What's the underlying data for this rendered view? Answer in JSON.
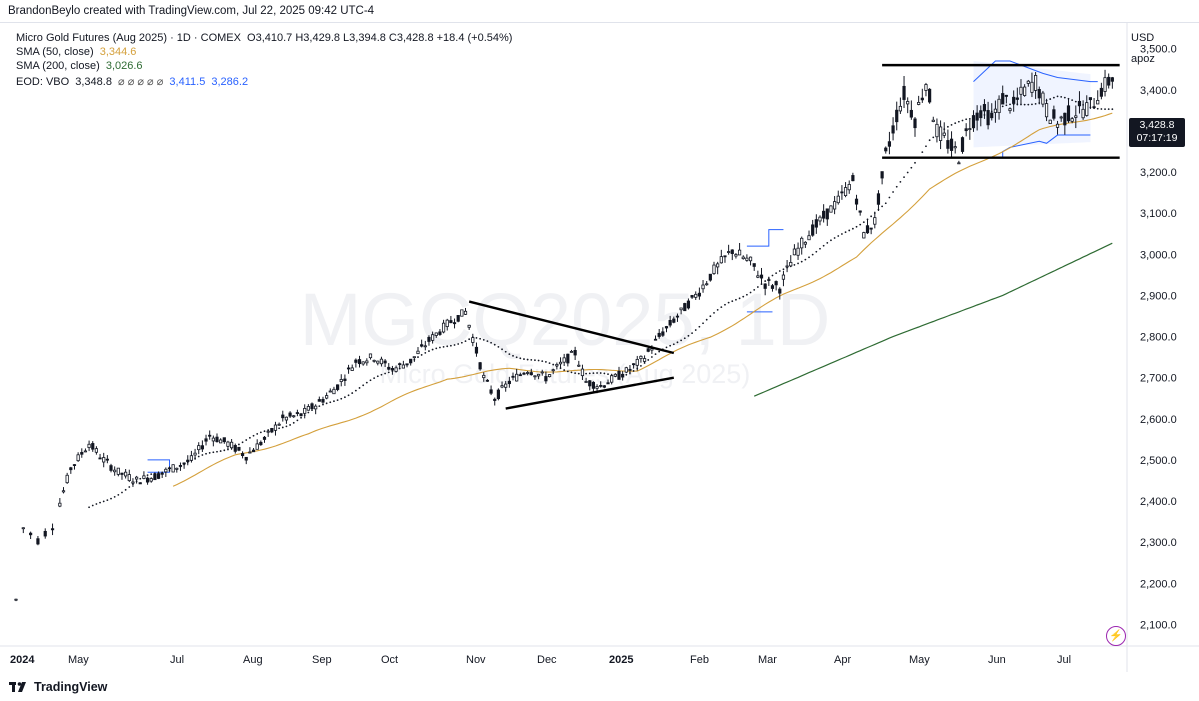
{
  "header": {
    "creator": "BrandonBeylo created with TradingView.com, Jul 22, 2025 09:42 UTC-4"
  },
  "legend": {
    "symbol": "Micro Gold Futures (Aug 2025) · 1D · COMEX",
    "ohlc": "O3,410.7 H3,429.8 L3,394.8 C3,428.8 +18.4 (+0.54%)",
    "sma50_label": "SMA (50, close)",
    "sma50_value": "3,344.6",
    "sma200_label": "SMA (200, close)",
    "sma200_value": "3,026.6",
    "eod_label": "EOD: VBO",
    "eod_value": "3,348.8",
    "eod_symbols": "⌀ ⌀ ⌀ ⌀ ⌀",
    "eod_upper": "3,411.5",
    "eod_lower": "3,286.2"
  },
  "right_panel": {
    "currency": "USD",
    "user": "apoz",
    "last_price": "3,428.8",
    "countdown": "07:17:19"
  },
  "watermark": {
    "symbol": "MGCQ2025, 1D",
    "name": "Micro Gold Futures (Aug 2025)"
  },
  "branding": {
    "logo_text": "TradingView"
  },
  "colors": {
    "sma50": "#d4a03c",
    "sma200": "#2e6b33",
    "vbo": "#2962ff",
    "candle": "#131722",
    "trendline": "#000000"
  },
  "chart_data": {
    "type": "candlestick",
    "title": "Micro Gold Futures (Aug 2025) · 1D · COMEX",
    "y_axis": {
      "range": [
        2050,
        3560
      ],
      "ticks": [
        "2,100.0",
        "2,200.0",
        "2,300.0",
        "2,400.0",
        "2,500.0",
        "2,600.0",
        "2,700.0",
        "2,800.0",
        "2,900.0",
        "3,000.0",
        "3,100.0",
        "3,200.0",
        "3,300.0",
        "3,400.0",
        "3,500.0"
      ]
    },
    "x_axis": {
      "ticks": [
        {
          "label": "2024",
          "bold": true
        },
        {
          "label": "May"
        },
        {
          "label": "Jul"
        },
        {
          "label": "Aug"
        },
        {
          "label": "Sep"
        },
        {
          "label": "Oct"
        },
        {
          "label": "Nov"
        },
        {
          "label": "Dec"
        },
        {
          "label": "2025",
          "bold": true
        },
        {
          "label": "Feb"
        },
        {
          "label": "Mar"
        },
        {
          "label": "Apr"
        },
        {
          "label": "May"
        },
        {
          "label": "Jun"
        },
        {
          "label": "Jul"
        }
      ]
    },
    "price_anchors": [
      [
        0,
        2160
      ],
      [
        2,
        2335
      ],
      [
        6,
        2305
      ],
      [
        10,
        2340
      ],
      [
        15,
        2480
      ],
      [
        20,
        2540
      ],
      [
        24,
        2500
      ],
      [
        28,
        2470
      ],
      [
        33,
        2450
      ],
      [
        38,
        2460
      ],
      [
        43,
        2480
      ],
      [
        48,
        2500
      ],
      [
        53,
        2560
      ],
      [
        58,
        2540
      ],
      [
        63,
        2510
      ],
      [
        68,
        2550
      ],
      [
        73,
        2600
      ],
      [
        78,
        2610
      ],
      [
        83,
        2640
      ],
      [
        88,
        2680
      ],
      [
        93,
        2740
      ],
      [
        98,
        2750
      ],
      [
        103,
        2720
      ],
      [
        108,
        2740
      ],
      [
        113,
        2790
      ],
      [
        118,
        2830
      ],
      [
        123,
        2860
      ],
      [
        128,
        2700
      ],
      [
        131,
        2650
      ],
      [
        135,
        2690
      ],
      [
        140,
        2720
      ],
      [
        145,
        2700
      ],
      [
        150,
        2740
      ],
      [
        153,
        2760
      ],
      [
        156,
        2690
      ],
      [
        160,
        2680
      ],
      [
        164,
        2700
      ],
      [
        168,
        2720
      ],
      [
        172,
        2750
      ],
      [
        176,
        2800
      ],
      [
        181,
        2850
      ],
      [
        186,
        2900
      ],
      [
        191,
        2960
      ],
      [
        196,
        3010
      ],
      [
        201,
        2980
      ],
      [
        205,
        2930
      ],
      [
        209,
        2920
      ],
      [
        213,
        3000
      ],
      [
        217,
        3050
      ],
      [
        221,
        3090
      ],
      [
        225,
        3130
      ],
      [
        229,
        3180
      ],
      [
        232,
        3050
      ],
      [
        235,
        3080
      ],
      [
        238,
        3240
      ],
      [
        241,
        3340
      ],
      [
        243,
        3390
      ],
      [
        246,
        3330
      ],
      [
        249,
        3420
      ],
      [
        252,
        3300
      ],
      [
        255,
        3270
      ],
      [
        258,
        3240
      ],
      [
        261,
        3320
      ],
      [
        264,
        3350
      ],
      [
        267,
        3330
      ],
      [
        270,
        3380
      ],
      [
        273,
        3360
      ],
      [
        276,
        3400
      ],
      [
        279,
        3420
      ],
      [
        282,
        3350
      ],
      [
        285,
        3320
      ],
      [
        288,
        3340
      ],
      [
        291,
        3350
      ],
      [
        294,
        3360
      ],
      [
        297,
        3400
      ],
      [
        300,
        3430
      ]
    ],
    "sma50_anchors": [
      [
        43,
        2440
      ],
      [
        60,
        2510
      ],
      [
        80,
        2560
      ],
      [
        100,
        2630
      ],
      [
        118,
        2700
      ],
      [
        135,
        2720
      ],
      [
        155,
        2715
      ],
      [
        170,
        2720
      ],
      [
        190,
        2800
      ],
      [
        210,
        2900
      ],
      [
        230,
        2990
      ],
      [
        250,
        3160
      ],
      [
        265,
        3230
      ],
      [
        280,
        3300
      ],
      [
        300,
        3345
      ]
    ],
    "sma200_anchors": [
      [
        202,
        2655
      ],
      [
        240,
        2800
      ],
      [
        270,
        2900
      ],
      [
        300,
        3027
      ]
    ],
    "vbo_mid_anchors": [
      [
        20,
        2380
      ],
      [
        35,
        2455
      ],
      [
        55,
        2520
      ],
      [
        75,
        2590
      ],
      [
        95,
        2680
      ],
      [
        110,
        2750
      ],
      [
        125,
        2800
      ],
      [
        135,
        2760
      ],
      [
        150,
        2720
      ],
      [
        165,
        2700
      ],
      [
        180,
        2780
      ],
      [
        195,
        2880
      ],
      [
        210,
        2960
      ],
      [
        225,
        3040
      ],
      [
        238,
        3120
      ],
      [
        250,
        3280
      ],
      [
        260,
        3330
      ],
      [
        272,
        3360
      ],
      [
        285,
        3380
      ],
      [
        300,
        3350
      ]
    ],
    "annotations": [
      {
        "type": "trendline",
        "from": [
          124,
          2885
        ],
        "to": [
          180,
          2760
        ]
      },
      {
        "type": "trendline",
        "from": [
          134,
          2625
        ],
        "to": [
          180,
          2700
        ]
      },
      {
        "type": "hline",
        "price": 3460,
        "from": 237,
        "to": 302
      },
      {
        "type": "hline",
        "price": 3235,
        "from": 237,
        "to": 302
      }
    ]
  }
}
